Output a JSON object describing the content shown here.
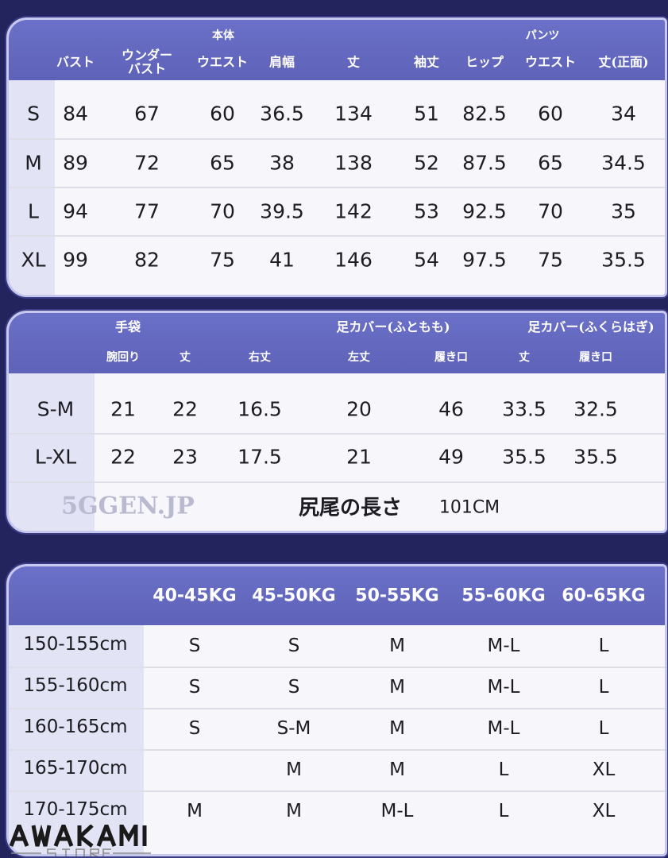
{
  "body_table": {
    "group_headers": [
      "本体",
      "パンツ"
    ],
    "columns": [
      "バスト",
      "ウンダー\nバスト",
      "ウエスト",
      "肩幅",
      "丈",
      "袖丈",
      "ヒップ",
      "ウエスト",
      "丈(正面)"
    ],
    "rows": [
      [
        "S",
        "84",
        "67",
        "60",
        "36.5",
        "134",
        "51",
        "82.5",
        "60",
        "34"
      ],
      [
        "M",
        "89",
        "72",
        "65",
        "38",
        "138",
        "52",
        "87.5",
        "65",
        "34.5"
      ],
      [
        "L",
        "94",
        "77",
        "70",
        "39.5",
        "142",
        "53",
        "92.5",
        "70",
        "35"
      ],
      [
        "XL",
        "99",
        "82",
        "75",
        "41",
        "146",
        "54",
        "97.5",
        "75",
        "35.5"
      ]
    ]
  },
  "accessory_table": {
    "group_headers": [
      "手袋",
      "足カバー(ふともも)",
      "足カバー(ふくらはぎ)"
    ],
    "columns": [
      "腕回り",
      "丈",
      "右丈",
      "左丈",
      "履き口",
      "丈",
      "履き口"
    ],
    "rows": [
      [
        "S-M",
        "21",
        "22",
        "16.5",
        "20",
        "46",
        "33.5",
        "32.5"
      ],
      [
        "L-XL",
        "22",
        "23",
        "17.5",
        "21",
        "49",
        "35.5",
        "35.5"
      ]
    ],
    "tail_label": "尻尾の長さ",
    "tail_value": "101CM"
  },
  "size_guide": {
    "columns": [
      "40-45KG",
      "45-50KG",
      "50-55KG",
      "55-60KG",
      "60-65KG"
    ],
    "rows": [
      [
        "150-155cm",
        "S",
        "S",
        "M",
        "M-L",
        "L"
      ],
      [
        "155-160cm",
        "S",
        "S",
        "M",
        "M-L",
        "L"
      ],
      [
        "160-165cm",
        "S",
        "S-M",
        "M",
        "M-L",
        "L"
      ],
      [
        "165-170cm",
        "",
        "M",
        "M",
        "L",
        "XL"
      ],
      [
        "170-175cm",
        "M",
        "M",
        "M-L",
        "L",
        "XL"
      ]
    ]
  },
  "watermark": {
    "text": "5GGEN.JP",
    "logo": "AWAKAMI",
    "logo_sub": "STORE"
  },
  "colors": {
    "background": "#23245e",
    "header": "#6468bf",
    "body": "#f6f6fb"
  }
}
